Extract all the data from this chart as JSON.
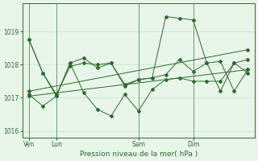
{
  "background_color": "#e8f5e9",
  "grid_color": "#c8e6c9",
  "line_color": "#2e6b2e",
  "text_color": "#2e6b2e",
  "xlabel": "Pression niveau de la mer( hPa )",
  "ylim": [
    1015.8,
    1019.85
  ],
  "yticks": [
    1016,
    1017,
    1018,
    1019
  ],
  "xtick_labels": [
    "Ven",
    "Lun",
    "Sam",
    "Dim"
  ],
  "xtick_pos": [
    1,
    3,
    9,
    13
  ],
  "vline_pos": [
    1,
    3,
    9,
    13
  ],
  "xlim": [
    0.5,
    17.5
  ],
  "series": [
    {
      "x": [
        1,
        2,
        3,
        4,
        5,
        6,
        7,
        8,
        9,
        10,
        11,
        12,
        13,
        14,
        15,
        16,
        17
      ],
      "y": [
        1018.75,
        1017.75,
        1017.05,
        1018.05,
        1018.2,
        1017.9,
        1018.05,
        1017.35,
        1017.55,
        1017.6,
        1019.45,
        1019.4,
        1019.35,
        1018.05,
        1017.2,
        1018.05,
        1017.75
      ]
    },
    {
      "x": [
        1,
        2,
        3,
        4,
        5,
        6,
        7,
        8,
        9,
        10,
        11,
        12,
        13,
        14,
        15,
        16,
        17
      ],
      "y": [
        1017.1,
        1016.75,
        1017.05,
        1018.05,
        1017.15,
        1016.65,
        1016.45,
        1017.1,
        1016.6,
        1017.25,
        1017.55,
        1017.6,
        1017.5,
        1017.5,
        1017.5,
        1018.05,
        1018.15
      ]
    },
    {
      "x": [
        1,
        17
      ],
      "y": [
        1017.05,
        1017.85
      ]
    },
    {
      "x": [
        1,
        17
      ],
      "y": [
        1017.2,
        1018.45
      ]
    },
    {
      "x": [
        1,
        2,
        3,
        4,
        5,
        6,
        7,
        8,
        9,
        10,
        11,
        12,
        13,
        14,
        15,
        16,
        17
      ],
      "y": [
        1018.75,
        1017.75,
        1017.1,
        1017.95,
        1018.05,
        1018.0,
        1018.05,
        1017.4,
        1017.55,
        1017.6,
        1017.7,
        1018.15,
        1017.8,
        1018.05,
        1018.1,
        1017.2,
        1017.85
      ]
    }
  ]
}
